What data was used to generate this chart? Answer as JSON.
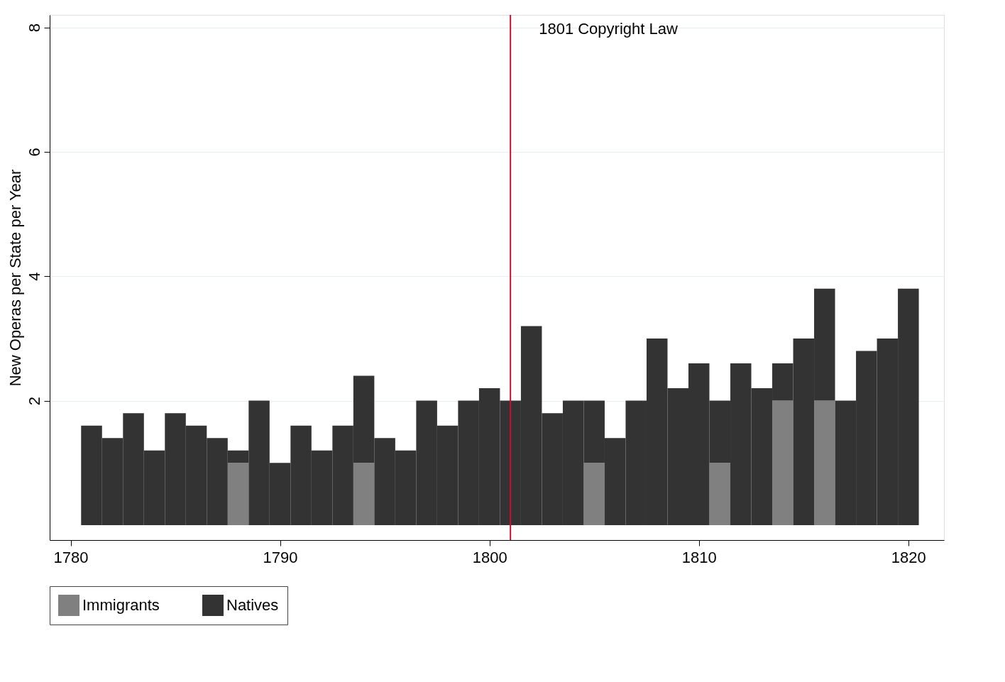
{
  "chart_data": {
    "type": "bar",
    "stacked": true,
    "ylabel": "New Operas per State per Year",
    "x": [
      1781,
      1782,
      1783,
      1784,
      1785,
      1786,
      1787,
      1788,
      1789,
      1790,
      1791,
      1792,
      1793,
      1794,
      1795,
      1796,
      1797,
      1798,
      1799,
      1800,
      1801,
      1802,
      1803,
      1804,
      1805,
      1806,
      1807,
      1808,
      1809,
      1810,
      1811,
      1812,
      1813,
      1814,
      1815,
      1816,
      1817,
      1818,
      1819,
      1820
    ],
    "series": [
      {
        "name": "Immigrants",
        "color": "#808080",
        "values": [
          null,
          null,
          null,
          null,
          null,
          null,
          null,
          1.0,
          null,
          null,
          null,
          null,
          null,
          1.0,
          null,
          null,
          null,
          null,
          null,
          null,
          null,
          null,
          null,
          null,
          1.0,
          null,
          null,
          null,
          null,
          null,
          1.0,
          null,
          null,
          2.0,
          null,
          2.0,
          null,
          null,
          null,
          null
        ]
      },
      {
        "name": "Natives",
        "color": "#333333",
        "values": [
          1.6,
          1.4,
          1.8,
          1.2,
          1.8,
          1.6,
          1.4,
          0.2,
          2.0,
          1.0,
          1.6,
          1.2,
          1.6,
          1.4,
          1.4,
          1.2,
          2.0,
          1.6,
          2.0,
          2.2,
          2.0,
          3.2,
          1.8,
          2.0,
          1.0,
          1.4,
          2.0,
          3.0,
          2.2,
          2.6,
          1.0,
          2.6,
          2.2,
          0.6,
          3.0,
          1.8,
          2.0,
          2.8,
          3.0,
          3.8
        ]
      }
    ],
    "xlim": [
      1779,
      1821.7
    ],
    "xticks": [
      1780,
      1790,
      1800,
      1810,
      1820
    ],
    "ylim": [
      -0.24,
      8.2
    ],
    "yticks": [
      2,
      4,
      6,
      8
    ],
    "grid": "y",
    "legend": "bottom",
    "ref_lines": [
      {
        "axis": "x",
        "value": 1801,
        "label": "1801 Copyright Law",
        "color": "#c8102e"
      }
    ]
  }
}
